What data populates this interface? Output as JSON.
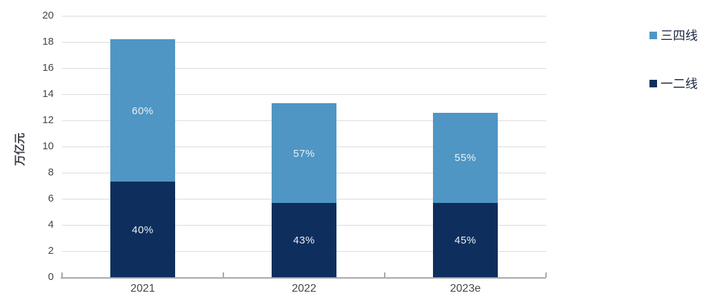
{
  "chart_data": {
    "type": "bar",
    "stacked": true,
    "title": "",
    "xlabel": "",
    "ylabel": "万亿元",
    "ylim": [
      0,
      20
    ],
    "ytick_step": 2,
    "grid": "horizontal",
    "legend_position": "right",
    "categories": [
      "2021",
      "2022",
      "2023e"
    ],
    "series": [
      {
        "name": "一二线",
        "color": "#0E2F5D",
        "values": [
          7.3,
          5.7,
          5.7
        ],
        "segment_labels": [
          "40%",
          "43%",
          "45%"
        ]
      },
      {
        "name": "三四线",
        "color": "#4F96C4",
        "values": [
          10.9,
          7.6,
          6.9
        ],
        "segment_labels": [
          "60%",
          "57%",
          "55%"
        ]
      }
    ],
    "totals": [
      18.2,
      13.3,
      12.6
    ]
  },
  "style": {
    "gridline_color": "#DBDBDB",
    "axis_color": "#A8A8A8",
    "tick_label_color": "#43464C",
    "y_title_color": "#3C4046",
    "bar_label_color": "#EDF0F4",
    "legend_text_color": "#1A2540"
  }
}
